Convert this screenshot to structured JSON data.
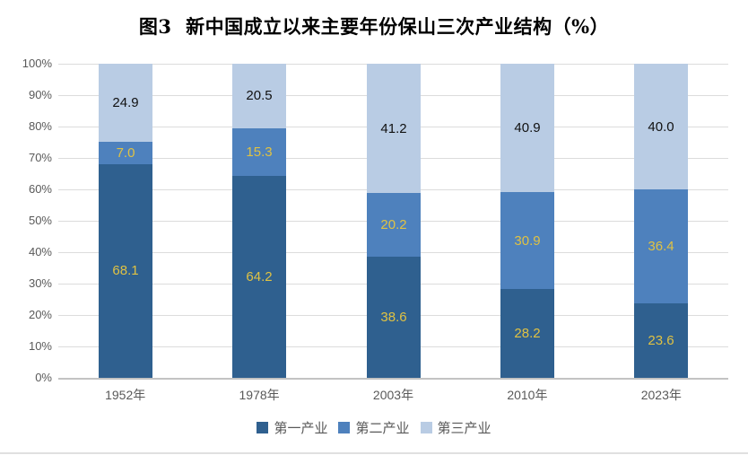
{
  "title": "图3  新中国成立以来主要年份保山三次产业结构（%）",
  "chart_data": {
    "type": "bar",
    "stacked": true,
    "percent_stacked": true,
    "title": "图3  新中国成立以来主要年份保山三次产业结构（%）",
    "categories": [
      "1952年",
      "1978年",
      "2003年",
      "2010年",
      "2023年"
    ],
    "series": [
      {
        "name": "第一产业",
        "color": "#2f608f",
        "label_color": "#e0c243",
        "values": [
          68.1,
          64.2,
          38.6,
          28.2,
          23.6
        ]
      },
      {
        "name": "第二产业",
        "color": "#4e81bd",
        "label_color": "#e0c243",
        "values": [
          7.0,
          15.3,
          20.2,
          30.9,
          36.4
        ]
      },
      {
        "name": "第三产业",
        "color": "#b9cce4",
        "label_color": "#111111",
        "values": [
          24.9,
          20.5,
          41.2,
          40.9,
          40.0
        ]
      }
    ],
    "y_ticks": [
      "100%",
      "90%",
      "80%",
      "70%",
      "60%",
      "50%",
      "40%",
      "30%",
      "20%",
      "10%",
      "0%"
    ],
    "ylim": [
      0,
      100
    ],
    "xlabel": "",
    "ylabel": "",
    "grid": true,
    "legend_position": "bottom",
    "label_decimals": 1
  },
  "colors": {
    "gridline": "#dcdcdc",
    "baseline": "#c3c3c3",
    "axis_text": "#595959",
    "background": "#ffffff"
  }
}
